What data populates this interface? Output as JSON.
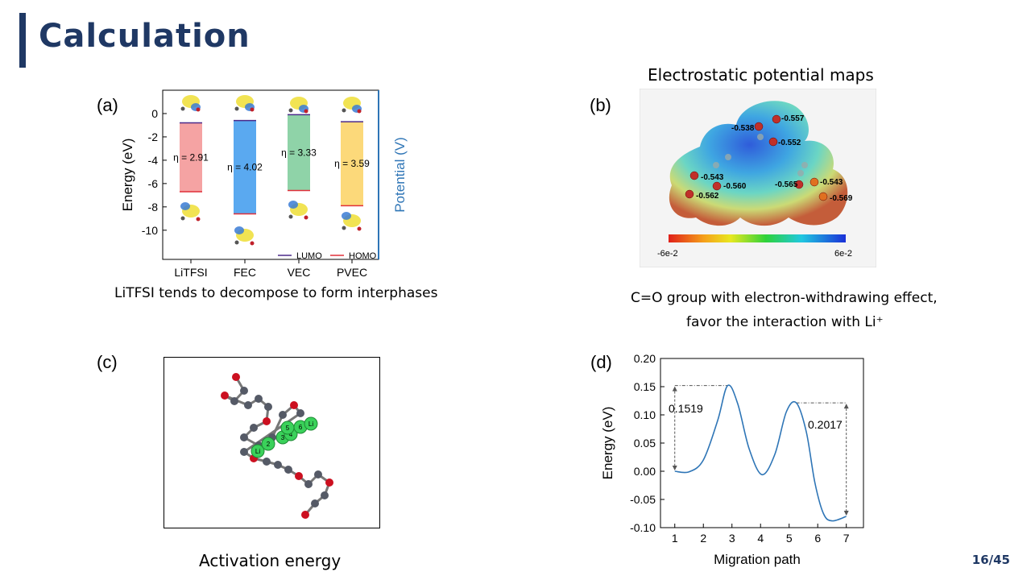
{
  "slide": {
    "title": "Calculation",
    "page": "16/45",
    "accent_color": "#1f3864"
  },
  "panel_a": {
    "label": "(a)",
    "caption": "LiTFSI tends to decompose to form interphases",
    "ylabel": "Energy (eV)",
    "right_label": "Potential (V)",
    "legend": {
      "lumo": "LUMO",
      "homo": "HOMO"
    },
    "yticks": [
      "0",
      "-2",
      "-4",
      "-6",
      "-8",
      "-10"
    ]
  },
  "panel_b": {
    "label": "(b)",
    "heading": "Electrostatic potential maps",
    "scale_min": "-6e-2",
    "scale_max": "6e-2",
    "atom_labels": [
      "-0.557",
      "-0.538",
      "-0.552",
      "-0.543",
      "-0.560",
      "-0.562",
      "-0.565",
      "-0.543",
      "-0.569"
    ],
    "caption_line1": "C=O group with electron-withdrawing  effect,",
    "caption_line2": "favor the interaction with Li⁺"
  },
  "panel_c": {
    "label": "(c)",
    "caption": "Activation energy",
    "site_labels": [
      "Li",
      "2",
      "3",
      "4",
      "5",
      "6",
      "Li"
    ]
  },
  "panel_d": {
    "label": "(d)",
    "annotations": [
      "0.1519",
      "0.2017"
    ],
    "yticks": [
      "0.20",
      "0.15",
      "0.10",
      "0.05",
      "0.00",
      "-0.05",
      "-0.10"
    ],
    "xticks": [
      "1",
      "2",
      "3",
      "4",
      "5",
      "6",
      "7"
    ]
  },
  "chart_data": [
    {
      "type": "bar",
      "xlabel": "",
      "ylabel": "Energy (eV)",
      "ylim": [
        -12.5,
        2
      ],
      "categories": [
        "LiTFSI",
        "FEC",
        "VEC",
        "PVEC"
      ],
      "series": [
        {
          "name": "LUMO",
          "values": [
            -0.8,
            -0.6,
            -0.1,
            -0.7
          ]
        },
        {
          "name": "HOMO",
          "values": [
            -6.7,
            -8.6,
            -6.6,
            -7.9
          ]
        }
      ],
      "gap_labels": [
        "η = 2.91",
        "η = 4.02",
        "η = 3.33",
        "η = 3.59"
      ],
      "bar_colors": [
        "#f5a3a3",
        "#5aa9f0",
        "#8fd3a8",
        "#fcd97a"
      ]
    },
    {
      "type": "line",
      "xlabel": "Migration path",
      "ylabel": "Energy (eV)",
      "xlim": [
        0.5,
        7.6
      ],
      "ylim": [
        -0.1,
        0.2
      ],
      "x": [
        1,
        1.5,
        2,
        2.5,
        2.85,
        3.2,
        3.6,
        4.05,
        4.5,
        4.9,
        5.25,
        5.6,
        5.9,
        6.2,
        6.5,
        7
      ],
      "series": [
        {
          "values": [
            0.0,
            -0.001,
            0.02,
            0.09,
            0.152,
            0.12,
            0.04,
            -0.006,
            0.03,
            0.105,
            0.1213,
            0.07,
            -0.02,
            -0.075,
            -0.088,
            -0.08
          ]
        }
      ],
      "color": "#2e75b6"
    }
  ]
}
